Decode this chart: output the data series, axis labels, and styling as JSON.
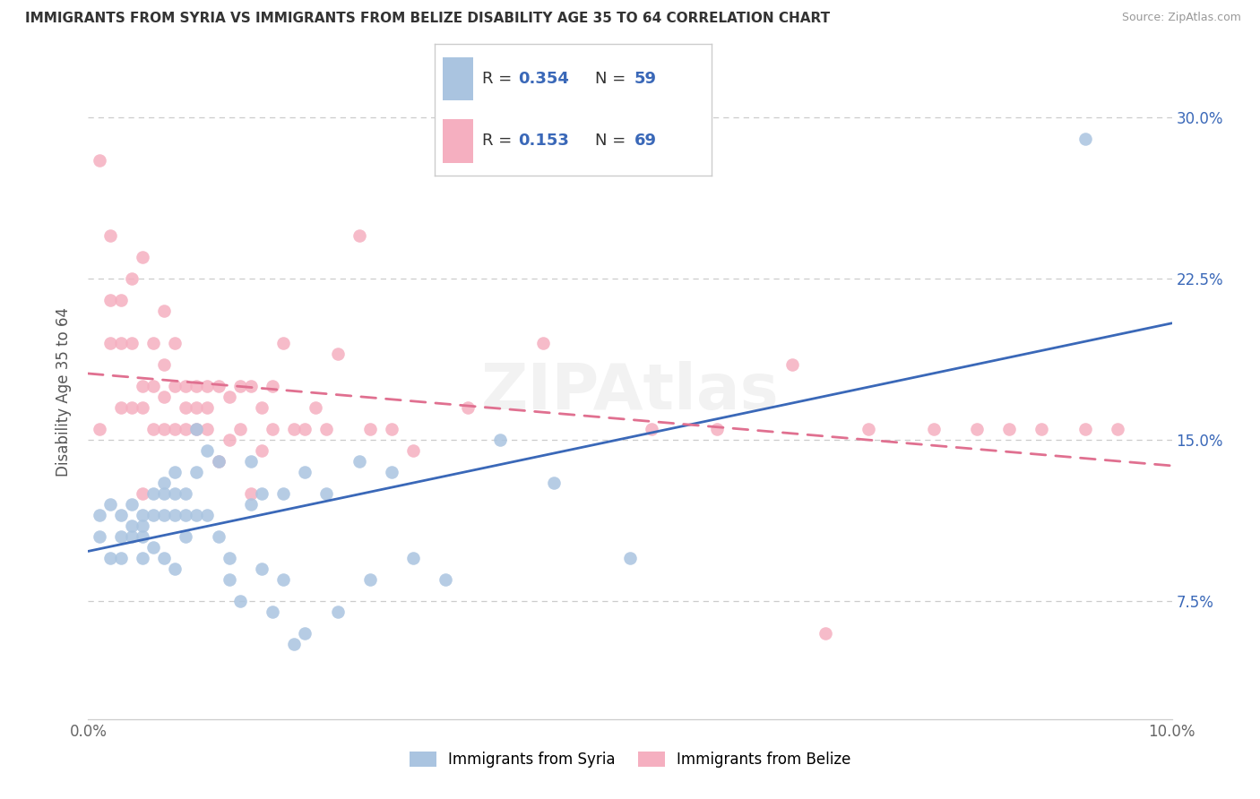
{
  "title": "IMMIGRANTS FROM SYRIA VS IMMIGRANTS FROM BELIZE DISABILITY AGE 35 TO 64 CORRELATION CHART",
  "source": "Source: ZipAtlas.com",
  "ylabel": "Disability Age 35 to 64",
  "ytick_vals": [
    0.075,
    0.15,
    0.225,
    0.3
  ],
  "ytick_labels": [
    "7.5%",
    "15.0%",
    "22.5%",
    "30.0%"
  ],
  "xlim": [
    0.0,
    0.1
  ],
  "ylim": [
    0.02,
    0.325
  ],
  "legend_r_syria": "0.354",
  "legend_n_syria": "59",
  "legend_r_belize": "0.153",
  "legend_n_belize": "69",
  "color_syria": "#aac4e0",
  "color_belize": "#f5afc0",
  "line_color_syria": "#3a68b8",
  "line_color_belize": "#e07090",
  "syria_x": [
    0.001,
    0.001,
    0.002,
    0.002,
    0.003,
    0.003,
    0.003,
    0.004,
    0.004,
    0.004,
    0.005,
    0.005,
    0.005,
    0.005,
    0.006,
    0.006,
    0.006,
    0.007,
    0.007,
    0.007,
    0.007,
    0.008,
    0.008,
    0.008,
    0.008,
    0.009,
    0.009,
    0.009,
    0.01,
    0.01,
    0.01,
    0.011,
    0.011,
    0.012,
    0.012,
    0.013,
    0.013,
    0.014,
    0.015,
    0.015,
    0.016,
    0.016,
    0.017,
    0.018,
    0.018,
    0.019,
    0.02,
    0.02,
    0.022,
    0.023,
    0.025,
    0.026,
    0.028,
    0.03,
    0.033,
    0.038,
    0.043,
    0.05,
    0.092
  ],
  "syria_y": [
    0.115,
    0.105,
    0.12,
    0.095,
    0.115,
    0.105,
    0.095,
    0.12,
    0.11,
    0.105,
    0.115,
    0.11,
    0.105,
    0.095,
    0.125,
    0.115,
    0.1,
    0.13,
    0.125,
    0.115,
    0.095,
    0.135,
    0.125,
    0.115,
    0.09,
    0.125,
    0.115,
    0.105,
    0.155,
    0.135,
    0.115,
    0.145,
    0.115,
    0.14,
    0.105,
    0.095,
    0.085,
    0.075,
    0.14,
    0.12,
    0.125,
    0.09,
    0.07,
    0.125,
    0.085,
    0.055,
    0.135,
    0.06,
    0.125,
    0.07,
    0.14,
    0.085,
    0.135,
    0.095,
    0.085,
    0.15,
    0.13,
    0.095,
    0.29
  ],
  "belize_x": [
    0.001,
    0.001,
    0.002,
    0.002,
    0.002,
    0.003,
    0.003,
    0.003,
    0.004,
    0.004,
    0.004,
    0.005,
    0.005,
    0.005,
    0.005,
    0.006,
    0.006,
    0.006,
    0.007,
    0.007,
    0.007,
    0.007,
    0.008,
    0.008,
    0.008,
    0.009,
    0.009,
    0.009,
    0.01,
    0.01,
    0.01,
    0.011,
    0.011,
    0.011,
    0.012,
    0.012,
    0.013,
    0.013,
    0.014,
    0.014,
    0.015,
    0.015,
    0.016,
    0.016,
    0.017,
    0.017,
    0.018,
    0.019,
    0.02,
    0.021,
    0.022,
    0.023,
    0.025,
    0.026,
    0.028,
    0.03,
    0.035,
    0.042,
    0.052,
    0.058,
    0.065,
    0.068,
    0.072,
    0.078,
    0.082,
    0.085,
    0.088,
    0.092,
    0.095
  ],
  "belize_y": [
    0.28,
    0.155,
    0.245,
    0.215,
    0.195,
    0.215,
    0.195,
    0.165,
    0.225,
    0.195,
    0.165,
    0.235,
    0.175,
    0.165,
    0.125,
    0.195,
    0.175,
    0.155,
    0.21,
    0.185,
    0.17,
    0.155,
    0.195,
    0.175,
    0.155,
    0.175,
    0.165,
    0.155,
    0.175,
    0.165,
    0.155,
    0.175,
    0.165,
    0.155,
    0.175,
    0.14,
    0.17,
    0.15,
    0.175,
    0.155,
    0.175,
    0.125,
    0.165,
    0.145,
    0.175,
    0.155,
    0.195,
    0.155,
    0.155,
    0.165,
    0.155,
    0.19,
    0.245,
    0.155,
    0.155,
    0.145,
    0.165,
    0.195,
    0.155,
    0.155,
    0.185,
    0.06,
    0.155,
    0.155,
    0.155,
    0.155,
    0.155,
    0.155,
    0.155
  ]
}
